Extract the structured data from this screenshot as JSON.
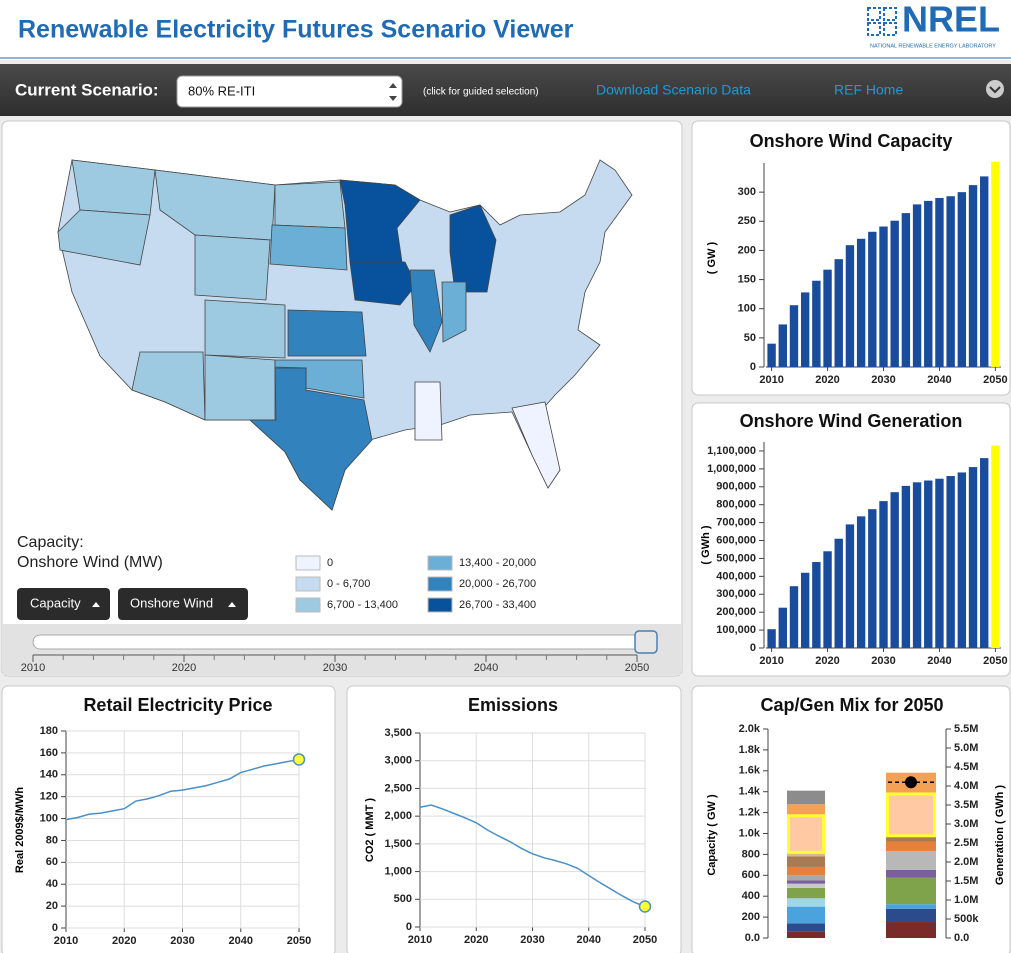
{
  "header": {
    "title": "Renewable Electricity Futures Scenario Viewer",
    "logo": "NREL",
    "logo_subtitle": "NATIONAL RENEWABLE ENERGY LABORATORY"
  },
  "toolbar": {
    "label": "Current Scenario:",
    "scenario": "80% RE-ITI",
    "hint": "(click for guided selection)",
    "links": [
      "Download Scenario Data",
      "REF Home"
    ]
  },
  "map": {
    "legend_title": "Capacity:",
    "legend_subtitle": "Onshore Wind (MW)",
    "bins": [
      {
        "label": "0",
        "color": "#eff3ff"
      },
      {
        "label": "0 - 6,700",
        "color": "#c6dbef"
      },
      {
        "label": "6,700 - 13,400",
        "color": "#9ecae1"
      },
      {
        "label": "13,400 - 20,000",
        "color": "#6baed6"
      },
      {
        "label": "20,000 - 26,700",
        "color": "#3182bd"
      },
      {
        "label": "26,700 - 33,400",
        "color": "#08519c"
      }
    ],
    "buttons": [
      "Capacity",
      "Onshore Wind"
    ]
  },
  "slider": {
    "xlim": [
      2010,
      2050
    ],
    "ticks": [
      2010,
      2020,
      2030,
      2040,
      2050
    ],
    "minor_ticks": [
      2012,
      2014,
      2016,
      2018,
      2022,
      2024,
      2026,
      2028,
      2032,
      2034,
      2036,
      2038,
      2042,
      2044,
      2046,
      2048
    ],
    "value": 2050
  },
  "chart_data": [
    {
      "type": "bar",
      "title": "Onshore Wind Capacity",
      "ylabel": "( GW )",
      "color": "#1a4c9e",
      "highlight_color": "#ffff00",
      "x": [
        2010,
        2012,
        2014,
        2016,
        2018,
        2020,
        2022,
        2024,
        2026,
        2028,
        2030,
        2032,
        2034,
        2036,
        2038,
        2040,
        2042,
        2044,
        2046,
        2048,
        2050
      ],
      "values": [
        40,
        73,
        106,
        128,
        148,
        167,
        185,
        209,
        220,
        232,
        241,
        251,
        264,
        279,
        285,
        290,
        293,
        300,
        312,
        327,
        352
      ],
      "xlim": [
        2009,
        2051
      ],
      "xticks": [
        2010,
        2020,
        2030,
        2040,
        2050
      ],
      "ylim": [
        0,
        350
      ],
      "yticks": [
        0,
        50,
        100,
        150,
        200,
        250,
        300
      ]
    },
    {
      "type": "bar",
      "title": "Onshore Wind Generation",
      "ylabel": "( GWh )",
      "color": "#1a4c9e",
      "highlight_color": "#ffff00",
      "x": [
        2010,
        2012,
        2014,
        2016,
        2018,
        2020,
        2022,
        2024,
        2026,
        2028,
        2030,
        2032,
        2034,
        2036,
        2038,
        2040,
        2042,
        2044,
        2046,
        2048,
        2050
      ],
      "values": [
        105000,
        225000,
        345000,
        420000,
        480000,
        540000,
        610000,
        690000,
        735000,
        775000,
        820000,
        870000,
        905000,
        925000,
        935000,
        945000,
        960000,
        980000,
        1010000,
        1060000,
        1130000
      ],
      "xlim": [
        2009,
        2051
      ],
      "xticks": [
        2010,
        2020,
        2030,
        2040,
        2050
      ],
      "ylim": [
        0,
        1150000
      ],
      "yticks": [
        0,
        {
          "value": 100000,
          "label": "100,000"
        },
        {
          "value": 200000,
          "label": "200,000"
        },
        {
          "value": 300000,
          "label": "300,000"
        },
        {
          "value": 400000,
          "label": "400,000"
        },
        {
          "value": 500000,
          "label": "500,000"
        },
        {
          "value": 600000,
          "label": "600,000"
        },
        {
          "value": 700000,
          "label": "700,000"
        },
        {
          "value": 800000,
          "label": "800,000"
        },
        {
          "value": 900000,
          "label": "900,000"
        },
        {
          "value": 1000000,
          "label": "1,000,000"
        },
        {
          "value": 1100000,
          "label": "1,100,000"
        }
      ]
    },
    {
      "type": "line",
      "title": "Retail Electricity Price",
      "ylabel": "Real 2009$/MWh",
      "color": "#4a90c8",
      "marker_color": "#ffff33",
      "grid": true,
      "x": [
        2010,
        2012,
        2014,
        2016,
        2018,
        2020,
        2022,
        2024,
        2026,
        2028,
        2030,
        2032,
        2034,
        2036,
        2038,
        2040,
        2042,
        2044,
        2046,
        2048,
        2050
      ],
      "values": [
        99,
        101,
        104,
        105,
        107,
        109,
        116,
        118,
        121,
        125,
        126,
        128,
        130,
        133,
        136,
        142,
        145,
        148,
        150,
        152,
        154
      ],
      "xlim": [
        2010,
        2050
      ],
      "xticks": [
        2010,
        2020,
        2030,
        2040,
        2050
      ],
      "ylim": [
        0,
        180
      ],
      "yticks": [
        0,
        20,
        40,
        60,
        80,
        100,
        120,
        140,
        160,
        180
      ]
    },
    {
      "type": "line",
      "title": "Emissions",
      "ylabel": "CO2 ( MMT )",
      "color": "#4a90c8",
      "marker_color": "#ffff33",
      "grid": true,
      "x": [
        2010,
        2012,
        2014,
        2016,
        2018,
        2020,
        2022,
        2024,
        2026,
        2028,
        2030,
        2032,
        2034,
        2036,
        2038,
        2040,
        2042,
        2044,
        2046,
        2048,
        2050
      ],
      "values": [
        2160,
        2200,
        2130,
        2050,
        1970,
        1880,
        1750,
        1640,
        1540,
        1420,
        1320,
        1250,
        1200,
        1140,
        1060,
        930,
        800,
        680,
        560,
        450,
        370
      ],
      "xlim": [
        2010,
        2050
      ],
      "xticks": [
        2010,
        2020,
        2030,
        2040,
        2050
      ],
      "ylim": [
        0,
        3500
      ],
      "yticks": [
        0,
        500,
        {
          "value": 1000,
          "label": "1,000"
        },
        {
          "value": 1500,
          "label": "1,500"
        },
        {
          "value": 2000,
          "label": "2,000"
        },
        {
          "value": 2500,
          "label": "2,500"
        },
        {
          "value": 3000,
          "label": "3,000"
        },
        {
          "value": 3500,
          "label": "3,500"
        }
      ]
    },
    {
      "type": "stacked_bar",
      "title": "Cap/Gen Mix for 2050",
      "ylabel": "Capacity ( GW )",
      "y2label": "Generation ( GWh )",
      "highlight_color": "#ffff33",
      "demand_color": "#000000",
      "ylim": [
        0,
        2000
      ],
      "y2lim": [
        0,
        5500000
      ],
      "yticks": [
        {
          "value": 0,
          "label": "0.0"
        },
        200,
        400,
        600,
        800,
        {
          "value": 1000,
          "label": "1.0k"
        },
        {
          "value": 1200,
          "label": "1.2k"
        },
        {
          "value": 1400,
          "label": "1.4k"
        },
        {
          "value": 1600,
          "label": "1.6k"
        },
        {
          "value": 1800,
          "label": "1.8k"
        },
        {
          "value": 2000,
          "label": "2.0k"
        }
      ],
      "y2ticks": [
        {
          "value": 0,
          "label": "0.0"
        },
        {
          "value": 500000,
          "label": "500k"
        },
        {
          "value": 1000000,
          "label": "1.0M"
        },
        {
          "value": 1500000,
          "label": "1.5M"
        },
        {
          "value": 2000000,
          "label": "2.0M"
        },
        {
          "value": 2500000,
          "label": "2.5M"
        },
        {
          "value": 3000000,
          "label": "3.0M"
        },
        {
          "value": 3500000,
          "label": "3.5M"
        },
        {
          "value": 4000000,
          "label": "4.0M"
        },
        {
          "value": 4500000,
          "label": "4.5M"
        },
        {
          "value": 5000000,
          "label": "5.0M"
        },
        {
          "value": 5500000,
          "label": "5.5M"
        }
      ],
      "capacity_segments": [
        {
          "color": "#7b2a2a",
          "value": 60
        },
        {
          "color": "#2c4b8c",
          "value": 80
        },
        {
          "color": "#4aa3dc",
          "value": 160
        },
        {
          "color": "#9fd6e8",
          "value": 80
        },
        {
          "color": "#7fa34a",
          "value": 100
        },
        {
          "color": "#c8c8c8",
          "value": 40
        },
        {
          "color": "#7a5ea0",
          "value": 30
        },
        {
          "color": "#a8a8a8",
          "value": 50
        },
        {
          "color": "#e8803a",
          "value": 80
        },
        {
          "color": "#a77c55",
          "value": 100
        },
        {
          "color": "#d9b88f",
          "value": 40
        },
        {
          "color": "#ffc9a3",
          "value": 350,
          "highlighted": true
        },
        {
          "color": "#f4a055",
          "value": 110
        },
        {
          "color": "#8c8c8c",
          "value": 130
        }
      ],
      "generation_segments": [
        {
          "color": "#7b2a2a",
          "value": 420000
        },
        {
          "color": "#2c4b8c",
          "value": 350000
        },
        {
          "color": "#4aa3dc",
          "value": 120000
        },
        {
          "color": "#7fa34a",
          "value": 700000
        },
        {
          "color": "#7a5ea0",
          "value": 200000
        },
        {
          "color": "#b8b8b8",
          "value": 500000
        },
        {
          "color": "#e8803a",
          "value": 250000
        },
        {
          "color": "#a77c55",
          "value": 150000
        },
        {
          "color": "#ffc9a3",
          "value": 1100000,
          "highlighted": true
        },
        {
          "color": "#f4a055",
          "value": 560000
        }
      ],
      "demand": 4100000
    }
  ]
}
